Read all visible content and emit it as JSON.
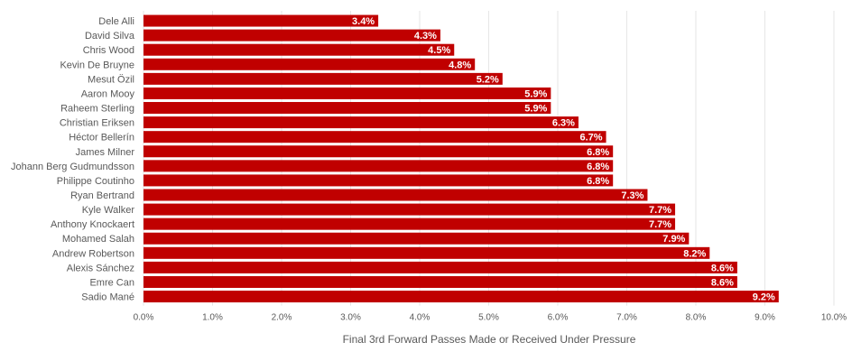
{
  "colors": {
    "bar": "#c00000",
    "grid": "#e6e6e6",
    "axis_text": "#595959",
    "bar_label": "#ffffff"
  },
  "chart_data": {
    "type": "bar",
    "orientation": "horizontal",
    "title": "",
    "xlabel": "Final 3rd Forward Passes Made or Received Under Pressure",
    "ylabel": "",
    "xlim": [
      0,
      10
    ],
    "grid": true,
    "legend": "none",
    "x_ticks": [
      "0.0%",
      "1.0%",
      "2.0%",
      "3.0%",
      "4.0%",
      "5.0%",
      "6.0%",
      "7.0%",
      "8.0%",
      "9.0%",
      "10.0%"
    ],
    "categories": [
      "Dele Alli",
      "David Silva",
      "Chris Wood",
      "Kevin De Bruyne",
      "Mesut Özil",
      "Aaron Mooy",
      "Raheem Sterling",
      "Christian Eriksen",
      "Héctor Bellerín",
      "James Milner",
      "Johann Berg Gudmundsson",
      "Philippe Coutinho",
      "Ryan Bertrand",
      "Kyle Walker",
      "Anthony Knockaert",
      "Mohamed Salah",
      "Andrew Robertson",
      "Alexis Sánchez",
      "Emre Can",
      "Sadio Mané"
    ],
    "values": [
      3.4,
      4.3,
      4.5,
      4.8,
      5.2,
      5.9,
      5.9,
      6.3,
      6.7,
      6.8,
      6.8,
      6.8,
      7.3,
      7.7,
      7.7,
      7.9,
      8.2,
      8.6,
      8.6,
      9.2
    ],
    "data_labels": [
      "3.4%",
      "4.3%",
      "4.5%",
      "4.8%",
      "5.2%",
      "5.9%",
      "5.9%",
      "6.3%",
      "6.7%",
      "6.8%",
      "6.8%",
      "6.8%",
      "7.3%",
      "7.7%",
      "7.7%",
      "7.9%",
      "8.2%",
      "8.6%",
      "8.6%",
      "9.2%"
    ]
  }
}
